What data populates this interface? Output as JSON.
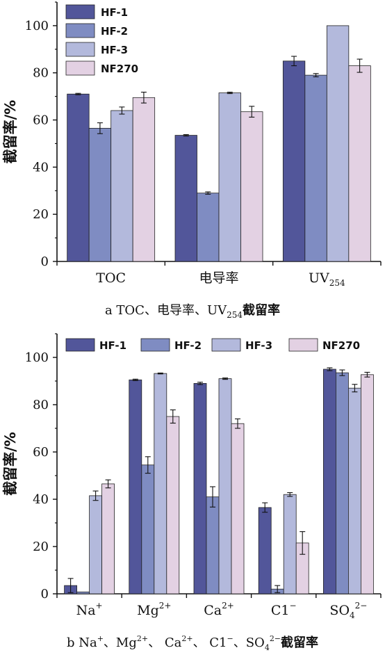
{
  "colors": {
    "HF-1": "#52569a",
    "HF-2": "#7f8cc2",
    "HF-3": "#b3b9dc",
    "NF270": "#e3d1e3"
  },
  "chart_data": [
    {
      "type": "bar",
      "ylabel": "截留率/%",
      "ylim": [
        0,
        110
      ],
      "yticks": [
        0,
        20,
        40,
        60,
        80,
        100
      ],
      "legend_position": "top-left",
      "categories": [
        {
          "main": "TOC",
          "sup": "",
          "sub": ""
        },
        {
          "main": "电导率",
          "sup": "",
          "sub": ""
        },
        {
          "main": "UV",
          "sup": "",
          "sub": "254"
        }
      ],
      "series": [
        {
          "name": "HF-1",
          "values": [
            71,
            53.5,
            85
          ],
          "errors": [
            0.3,
            0.3,
            2
          ]
        },
        {
          "name": "HF-2",
          "values": [
            56.5,
            29,
            79
          ],
          "errors": [
            2.3,
            0.5,
            0.7
          ]
        },
        {
          "name": "HF-3",
          "values": [
            64,
            71.5,
            100
          ],
          "errors": [
            1.5,
            0.3,
            0
          ]
        },
        {
          "name": "NF270",
          "values": [
            69.5,
            63.5,
            83
          ],
          "errors": [
            2.3,
            2.3,
            2.8
          ]
        }
      ],
      "caption": {
        "pre": "a TOC、电导率、UV",
        "sub": "254",
        "post": "截留率"
      }
    },
    {
      "type": "bar",
      "ylabel": "截留率/%",
      "ylim": [
        0,
        110
      ],
      "yticks": [
        0,
        20,
        40,
        60,
        80,
        100
      ],
      "legend_position": "top",
      "categories": [
        {
          "main": "Na",
          "sup": "+",
          "sub": ""
        },
        {
          "main": "Mg",
          "sup": "2+",
          "sub": ""
        },
        {
          "main": "Ca",
          "sup": "2+",
          "sub": ""
        },
        {
          "main": "C1",
          "sup": "−",
          "sub": ""
        },
        {
          "main": "SO",
          "sup": "2−",
          "sub": "4"
        }
      ],
      "series": [
        {
          "name": "HF-1",
          "values": [
            3.5,
            90.5,
            89,
            36.5,
            95
          ],
          "errors": [
            3,
            0.3,
            0.5,
            2,
            0.6
          ]
        },
        {
          "name": "HF-2",
          "values": [
            0.8,
            54.5,
            41,
            2,
            93.5
          ],
          "errors": [
            0,
            3.5,
            4.3,
            1.5,
            1.2
          ]
        },
        {
          "name": "HF-3",
          "values": [
            41.5,
            93.2,
            91,
            42,
            87
          ],
          "errors": [
            2,
            0.2,
            0.3,
            0.8,
            1.6
          ]
        },
        {
          "name": "NF270",
          "values": [
            46.5,
            75,
            72,
            21.5,
            92.7
          ],
          "errors": [
            1.7,
            2.8,
            2,
            4.8,
            1
          ]
        }
      ],
      "caption": {
        "pre": "b Na",
        "sup1": "+",
        "mid1": "、Mg",
        "sup2": "2+",
        "mid2": "、 Ca",
        "sup3": "2+",
        "mid3": "、 C1",
        "sup4": "−",
        "mid4": "、SO",
        "sub5": "4",
        "sup5": "2−",
        "post": "截留率"
      }
    }
  ]
}
